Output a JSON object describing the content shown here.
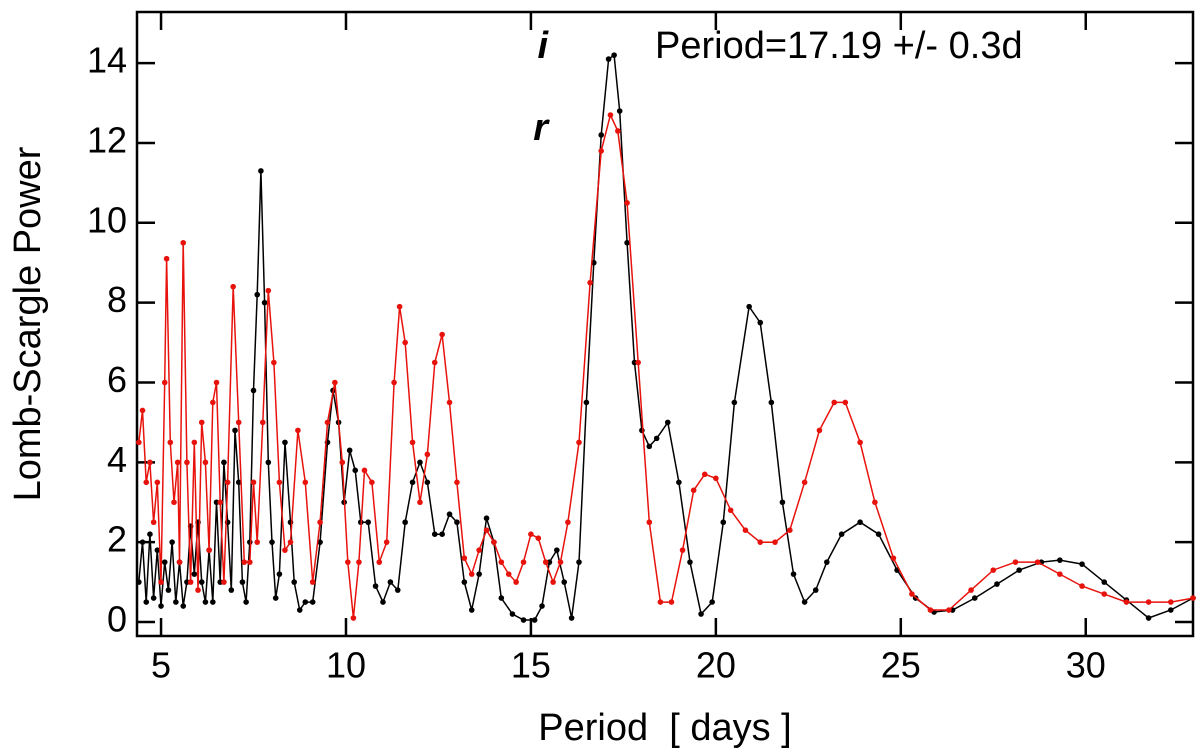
{
  "chart_data": {
    "type": "line",
    "x_label": "Period  [ days ]",
    "y_label": "Lomb-Scargle Power",
    "annotation": "Period=17.19 +/- 0.3d",
    "xlim": [
      4.35,
      32.9
    ],
    "ylim": [
      -0.35,
      15.28
    ],
    "xticks": [
      5,
      10,
      15,
      20,
      25,
      30
    ],
    "yticks": [
      0,
      2,
      4,
      6,
      8,
      10,
      12,
      14
    ],
    "series": [
      {
        "name": "i",
        "color": "#000000",
        "x": [
          4.4,
          4.5,
          4.6,
          4.7,
          4.8,
          4.9,
          5.0,
          5.1,
          5.2,
          5.3,
          5.4,
          5.5,
          5.6,
          5.7,
          5.8,
          5.9,
          6.0,
          6.1,
          6.2,
          6.3,
          6.4,
          6.5,
          6.6,
          6.7,
          6.8,
          6.9,
          7.0,
          7.1,
          7.2,
          7.3,
          7.4,
          7.5,
          7.6,
          7.7,
          7.8,
          7.9,
          8.0,
          8.1,
          8.2,
          8.35,
          8.5,
          8.6,
          8.75,
          8.9,
          9.1,
          9.3,
          9.5,
          9.65,
          9.8,
          9.95,
          10.1,
          10.25,
          10.4,
          10.6,
          10.8,
          11.0,
          11.2,
          11.4,
          11.6,
          11.8,
          12.0,
          12.2,
          12.4,
          12.6,
          12.8,
          13.0,
          13.2,
          13.4,
          13.6,
          13.8,
          14.0,
          14.2,
          14.5,
          14.8,
          15.1,
          15.3,
          15.5,
          15.7,
          15.9,
          16.1,
          16.3,
          16.5,
          16.7,
          16.9,
          17.1,
          17.25,
          17.4,
          17.6,
          17.8,
          18.0,
          18.2,
          18.4,
          18.7,
          19.0,
          19.3,
          19.6,
          19.9,
          20.2,
          20.5,
          20.9,
          21.2,
          21.5,
          21.8,
          22.1,
          22.4,
          22.7,
          23.0,
          23.4,
          23.9,
          24.4,
          24.9,
          25.4,
          25.9,
          26.4,
          27.0,
          27.6,
          28.2,
          28.8,
          29.3,
          29.9,
          30.5,
          31.1,
          31.7,
          32.3,
          32.9
        ],
        "values": [
          1.0,
          2.0,
          0.5,
          2.2,
          0.6,
          1.8,
          0.4,
          1.5,
          0.8,
          2.0,
          0.5,
          1.5,
          0.4,
          1.0,
          2.4,
          1.2,
          2.5,
          1.0,
          0.5,
          1.8,
          0.5,
          3.0,
          1.0,
          4.0,
          2.5,
          0.8,
          4.8,
          3.5,
          1.0,
          0.5,
          2.0,
          5.8,
          8.2,
          11.3,
          8.0,
          4.0,
          2.0,
          0.6,
          1.2,
          4.5,
          2.5,
          1.0,
          0.3,
          0.5,
          0.5,
          2.0,
          4.5,
          5.8,
          5.0,
          3.0,
          4.3,
          3.8,
          2.5,
          2.5,
          0.9,
          0.5,
          1.0,
          0.8,
          2.5,
          3.5,
          4.0,
          3.5,
          2.2,
          2.2,
          2.7,
          2.5,
          1.0,
          0.3,
          1.2,
          2.6,
          2.0,
          0.6,
          0.2,
          0.05,
          0.05,
          0.4,
          1.5,
          1.8,
          1.0,
          0.1,
          1.5,
          5.5,
          9.0,
          12.2,
          14.1,
          14.2,
          12.8,
          9.5,
          6.5,
          4.8,
          4.4,
          4.6,
          5.0,
          3.5,
          1.5,
          0.2,
          0.5,
          2.5,
          5.5,
          7.9,
          7.5,
          5.5,
          3.0,
          1.2,
          0.5,
          0.8,
          1.5,
          2.2,
          2.5,
          2.2,
          1.3,
          0.6,
          0.25,
          0.3,
          0.6,
          0.95,
          1.3,
          1.5,
          1.55,
          1.45,
          1.0,
          0.55,
          0.1,
          0.3,
          0.6
        ]
      },
      {
        "name": "r",
        "color": "#e8120c",
        "x": [
          4.4,
          4.5,
          4.6,
          4.7,
          4.8,
          4.9,
          5.0,
          5.1,
          5.15,
          5.25,
          5.35,
          5.45,
          5.5,
          5.6,
          5.7,
          5.8,
          5.9,
          6.0,
          6.1,
          6.2,
          6.3,
          6.4,
          6.5,
          6.6,
          6.7,
          6.8,
          6.95,
          7.1,
          7.25,
          7.4,
          7.5,
          7.6,
          7.75,
          7.9,
          8.05,
          8.2,
          8.35,
          8.5,
          8.7,
          8.9,
          9.1,
          9.3,
          9.5,
          9.7,
          9.9,
          10.05,
          10.2,
          10.35,
          10.5,
          10.7,
          10.9,
          11.1,
          11.3,
          11.45,
          11.6,
          11.8,
          12.0,
          12.2,
          12.4,
          12.6,
          12.8,
          13.0,
          13.2,
          13.4,
          13.6,
          13.8,
          14.0,
          14.2,
          14.4,
          14.6,
          14.8,
          15.0,
          15.2,
          15.4,
          15.6,
          15.8,
          16.0,
          16.3,
          16.6,
          16.9,
          17.15,
          17.35,
          17.6,
          17.9,
          18.2,
          18.5,
          18.8,
          19.1,
          19.4,
          19.7,
          20.0,
          20.4,
          20.8,
          21.2,
          21.6,
          22.0,
          22.4,
          22.8,
          23.2,
          23.5,
          23.9,
          24.3,
          24.8,
          25.3,
          25.8,
          26.3,
          26.9,
          27.5,
          28.1,
          28.7,
          29.3,
          29.9,
          30.5,
          31.1,
          31.7,
          32.3,
          32.9
        ],
        "values": [
          4.5,
          5.3,
          3.5,
          4.0,
          2.5,
          3.5,
          1.0,
          6.0,
          9.1,
          4.5,
          3.0,
          4.0,
          1.5,
          9.5,
          4.0,
          1.0,
          4.5,
          0.8,
          5.0,
          4.0,
          1.8,
          5.5,
          6.0,
          3.0,
          1.0,
          3.5,
          8.4,
          5.0,
          1.5,
          1.5,
          3.5,
          2.0,
          5.0,
          8.3,
          6.5,
          3.5,
          1.8,
          2.0,
          4.8,
          3.5,
          1.0,
          2.5,
          5.0,
          6.0,
          4.0,
          1.5,
          0.1,
          1.5,
          3.8,
          3.5,
          1.5,
          2.0,
          6.0,
          7.9,
          7.0,
          4.5,
          3.0,
          4.2,
          6.5,
          7.2,
          5.5,
          3.5,
          1.6,
          1.2,
          1.8,
          2.3,
          2.0,
          1.5,
          1.2,
          1.0,
          1.5,
          2.2,
          2.1,
          1.5,
          1.0,
          1.5,
          2.5,
          4.5,
          8.5,
          11.8,
          12.7,
          12.3,
          10.5,
          6.5,
          2.5,
          0.5,
          0.5,
          1.8,
          3.3,
          3.7,
          3.6,
          2.8,
          2.3,
          2.0,
          2.0,
          2.3,
          3.5,
          4.8,
          5.5,
          5.5,
          4.5,
          3.0,
          1.6,
          0.7,
          0.3,
          0.3,
          0.8,
          1.3,
          1.5,
          1.5,
          1.2,
          0.9,
          0.7,
          0.5,
          0.5,
          0.5,
          0.6
        ]
      }
    ]
  }
}
